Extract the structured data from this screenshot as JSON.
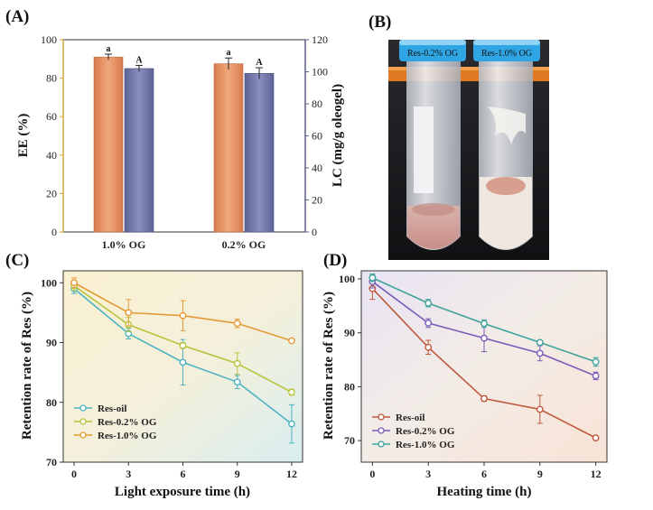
{
  "panels": {
    "A": "(A)",
    "B": "(B)",
    "C": "(C)",
    "D": "(D)"
  },
  "photo": {
    "labels": [
      "Res-0.2% OG",
      "Res-1.0% OG"
    ]
  },
  "colors": {
    "ee_bar": "#e8956a",
    "lc_bar": "#6f75a8",
    "ee_axis": "#d4a838",
    "lc_axis": "#5b5e8c",
    "res_oil": "#4fb3c2",
    "res_02_c": "#b8c43e",
    "res_10_c": "#e49a36",
    "res_oil_d": "#c0583c",
    "res_02_d": "#7a5cb8",
    "res_10_d": "#3fa39a"
  },
  "chart_data": [
    {
      "id": "A",
      "type": "bar",
      "categories": [
        "1.0% OG",
        "0.2% OG"
      ],
      "ylabel_left": "EE (%)",
      "ylabel_right": "LC (mg/g oleogel)",
      "ylim_left": [
        0,
        100
      ],
      "ylim_right": [
        0,
        120
      ],
      "yticks_left": [
        "0",
        "20",
        "40",
        "60",
        "80",
        "100"
      ],
      "yticks_right": [
        "0",
        "20",
        "40",
        "60",
        "80",
        "100",
        "120"
      ],
      "series": [
        {
          "key": "EE",
          "axis": "left",
          "values": [
            91,
            87.5
          ],
          "errors": [
            1.5,
            3
          ],
          "sig": [
            "a",
            "a"
          ]
        },
        {
          "key": "LC",
          "axis": "right",
          "values": [
            102,
            99
          ],
          "errors": [
            2,
            3.5
          ],
          "sig": [
            "A",
            "A"
          ]
        }
      ]
    },
    {
      "id": "C",
      "type": "line",
      "x": [
        0,
        3,
        6,
        9,
        12
      ],
      "xticks": [
        "0",
        "3",
        "6",
        "9",
        "12"
      ],
      "yticks": [
        "70",
        "80",
        "90",
        "100"
      ],
      "xlabel": "Light exposure time (h)",
      "ylabel": "Retention rate of Res (%)",
      "xlim": [
        -0.6,
        12.6
      ],
      "ylim": [
        70,
        102
      ],
      "legend": "bottom-left",
      "series": [
        {
          "name": "Res-oil",
          "values": [
            99,
            91.5,
            86.7,
            83.4,
            76.4
          ],
          "errors": [
            0.8,
            0.9,
            3.8,
            1.1,
            3.2
          ]
        },
        {
          "name": "Res-0.2% OG",
          "values": [
            99.5,
            93,
            89.5,
            86.5,
            81.7
          ],
          "errors": [
            0.8,
            1.2,
            0.5,
            1.8,
            0.5
          ]
        },
        {
          "name": "Res-1.0% OG",
          "values": [
            100,
            95,
            94.5,
            93.2,
            90.3
          ],
          "errors": [
            0.8,
            2.2,
            2.5,
            0.7,
            0.3
          ]
        }
      ]
    },
    {
      "id": "D",
      "type": "line",
      "x": [
        0,
        3,
        6,
        9,
        12
      ],
      "xticks": [
        "0",
        "3",
        "6",
        "9",
        "12"
      ],
      "yticks": [
        "70",
        "80",
        "90",
        "100"
      ],
      "xlabel": "Heating time (h)",
      "ylabel": "Retention rate of Res (%)",
      "xlim": [
        -0.6,
        12.6
      ],
      "ylim": [
        66,
        101.5
      ],
      "legend": "bottom-left",
      "series": [
        {
          "name": "Res-oil",
          "values": [
            98.2,
            87.3,
            77.8,
            75.8,
            70.5
          ],
          "errors": [
            2,
            1.3,
            0.5,
            2.6,
            0.3
          ]
        },
        {
          "name": "Res-0.2% OG",
          "values": [
            99.5,
            91.8,
            89,
            86.2,
            82
          ],
          "errors": [
            1.2,
            0.8,
            2.5,
            1.4,
            0.7
          ]
        },
        {
          "name": "Res-1.0% OG",
          "values": [
            100.2,
            95.5,
            91.7,
            88.2,
            84.6
          ],
          "errors": [
            0.7,
            0.7,
            0.7,
            0.3,
            0.8
          ]
        }
      ]
    }
  ]
}
